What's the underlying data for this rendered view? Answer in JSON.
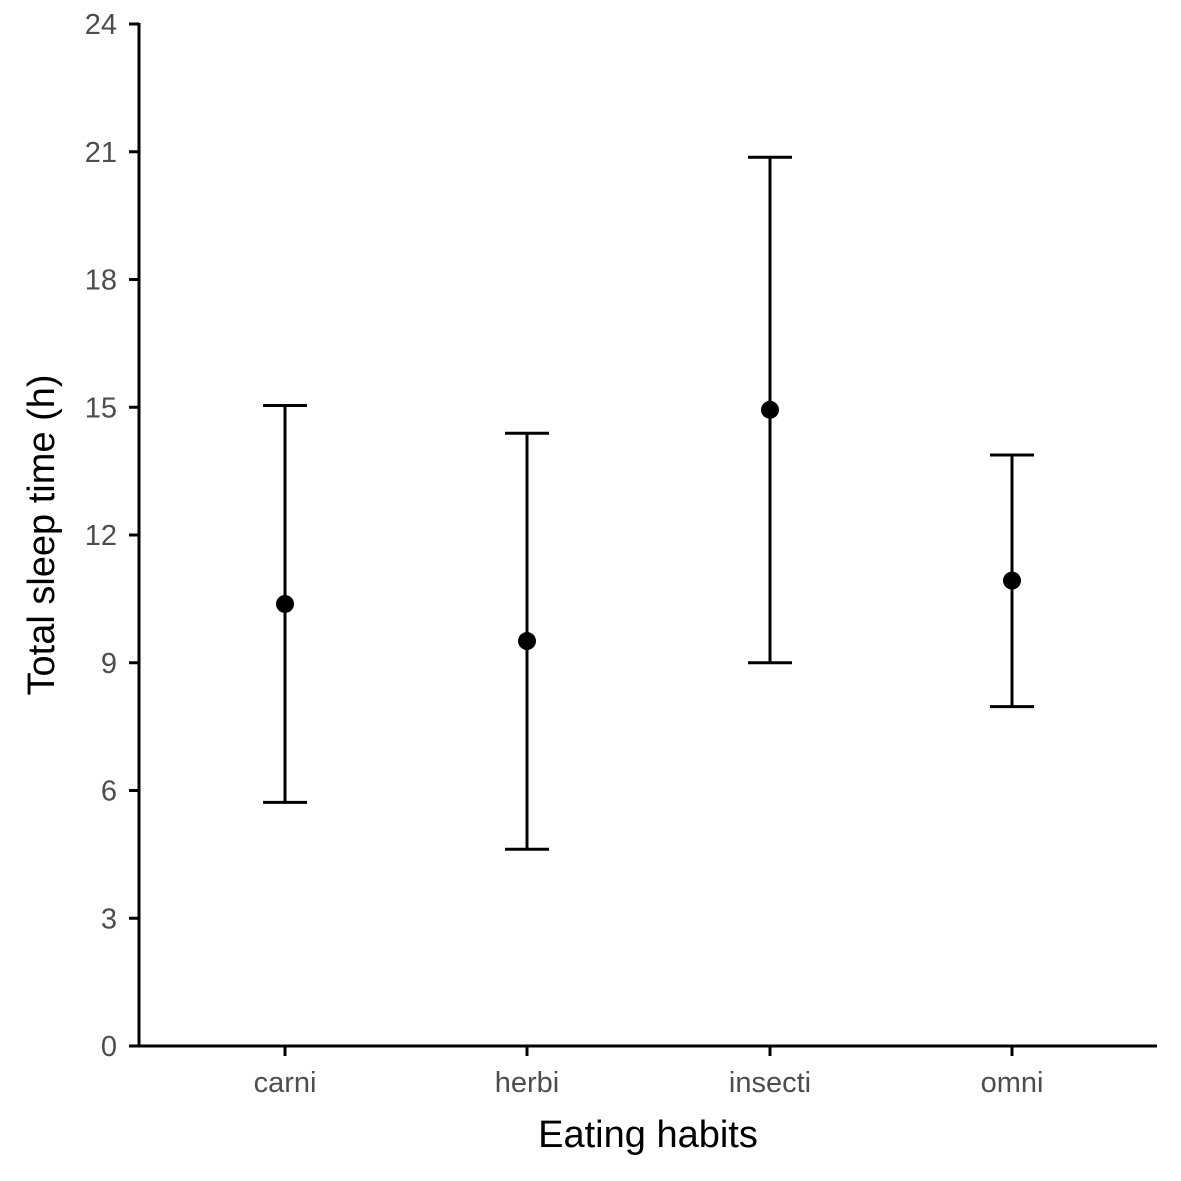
{
  "chart_data": {
    "type": "scatter",
    "subtype": "point-with-error-bars",
    "title": "",
    "xlabel": "Eating habits",
    "ylabel": "Total sleep time (h)",
    "categories": [
      "carni",
      "herbi",
      "insecti",
      "omni"
    ],
    "series": [
      {
        "values": [
          10.38,
          9.51,
          14.94,
          10.93
        ],
        "lower": [
          5.72,
          4.62,
          9.0,
          7.97
        ],
        "upper": [
          15.04,
          14.39,
          20.87,
          13.88
        ]
      }
    ],
    "ylim": [
      0,
      24
    ],
    "yticks": [
      0,
      3,
      6,
      9,
      12,
      15,
      18,
      21,
      24
    ],
    "grid": false,
    "legend": "none",
    "colors": {
      "marks": "#000000",
      "axis": "#000000",
      "tick_text": "#4d4d4d",
      "background": "#ffffff"
    }
  }
}
